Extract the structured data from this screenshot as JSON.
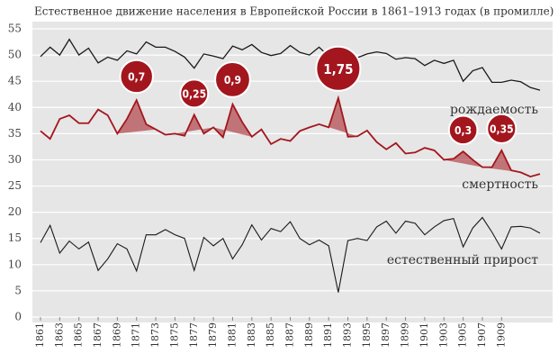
{
  "chart_data": {
    "type": "line",
    "title": "Естественное движение населения  в Европейской России в 1861–1913 годах (в промилле)",
    "x": [
      1861,
      1862,
      1863,
      1864,
      1865,
      1866,
      1867,
      1868,
      1869,
      1870,
      1871,
      1872,
      1873,
      1874,
      1875,
      1876,
      1877,
      1878,
      1879,
      1880,
      1881,
      1882,
      1883,
      1884,
      1885,
      1886,
      1887,
      1888,
      1889,
      1890,
      1891,
      1892,
      1893,
      1894,
      1895,
      1896,
      1897,
      1898,
      1899,
      1900,
      1901,
      1902,
      1903,
      1904,
      1905,
      1906,
      1907,
      1908,
      1909,
      1910,
      1911,
      1912,
      1913
    ],
    "xlim": [
      1861,
      1913
    ],
    "xticks": [
      1861,
      1863,
      1865,
      1867,
      1869,
      1871,
      1873,
      1875,
      1877,
      1879,
      1881,
      1883,
      1885,
      1887,
      1889,
      1891,
      1893,
      1895,
      1897,
      1899,
      1901,
      1903,
      1905,
      1907,
      1909
    ],
    "ylim": [
      0,
      55
    ],
    "yticks": [
      0,
      5,
      10,
      15,
      20,
      25,
      30,
      35,
      40,
      45,
      50,
      55
    ],
    "grid": true,
    "series": [
      {
        "name": "рождаемость",
        "color": "#1a1a1a",
        "values": [
          49.7,
          51.5,
          50,
          53,
          50,
          51.3,
          48.5,
          49.6,
          49,
          50.8,
          50.2,
          52.5,
          51.5,
          51.5,
          50.7,
          49.6,
          47.5,
          50.2,
          49.8,
          49.3,
          51.7,
          51,
          52,
          50.5,
          49.9,
          50.3,
          51.8,
          50.5,
          50,
          51.5,
          49.8,
          46.5,
          49,
          49.5,
          50.2,
          50.6,
          50.3,
          49.2,
          49.5,
          49.3,
          48,
          49,
          48.4,
          49,
          45,
          47,
          47.6,
          44.8,
          44.8,
          45.2,
          44.9,
          43.8,
          43.3
        ]
      },
      {
        "name": "смертность",
        "color": "#a3161d",
        "values": [
          35.5,
          34,
          37.8,
          38.5,
          37,
          37,
          39.6,
          38.5,
          35,
          37.8,
          41.4,
          36.8,
          35.8,
          34.8,
          35,
          34.6,
          38.6,
          35,
          36.2,
          34.3,
          40.6,
          37.2,
          34.4,
          35.8,
          33,
          34,
          33.6,
          35.5,
          36.2,
          36.8,
          36.2,
          41.8,
          34.4,
          34.5,
          35.6,
          33.4,
          32,
          33.2,
          31.2,
          31.4,
          32.3,
          31.8,
          30,
          30.2,
          31.6,
          30,
          28.6,
          28.6,
          31.8,
          28,
          27.6,
          26.8,
          27.3
        ]
      },
      {
        "name": "естественный прирост",
        "color": "#1a1a1a",
        "values": [
          14.2,
          17.5,
          12.2,
          14.5,
          13,
          14.3,
          8.9,
          11.1,
          14,
          13,
          8.8,
          15.7,
          15.7,
          16.7,
          15.7,
          15,
          8.9,
          15.2,
          13.6,
          15,
          11.1,
          13.8,
          17.6,
          14.7,
          16.9,
          16.3,
          18.2,
          15,
          13.8,
          14.7,
          13.6,
          4.7,
          14.6,
          15,
          14.6,
          17.2,
          18.3,
          16,
          18.3,
          17.9,
          15.7,
          17.2,
          18.4,
          18.8,
          13.4,
          17,
          19,
          16.2,
          13,
          17.2,
          17.3,
          17,
          16
        ]
      }
    ],
    "annotations": [
      {
        "x": 1871,
        "value": 0.7,
        "label": "0,7"
      },
      {
        "x": 1877,
        "value": 0.25,
        "label": "0,25"
      },
      {
        "x": 1881,
        "value": 0.9,
        "label": "0,9"
      },
      {
        "x": 1892,
        "value": 1.75,
        "label": "1,75"
      },
      {
        "x": 1905,
        "value": 0.3,
        "label": "0,3"
      },
      {
        "x": 1909,
        "value": 0.35,
        "label": "0,35"
      }
    ]
  }
}
